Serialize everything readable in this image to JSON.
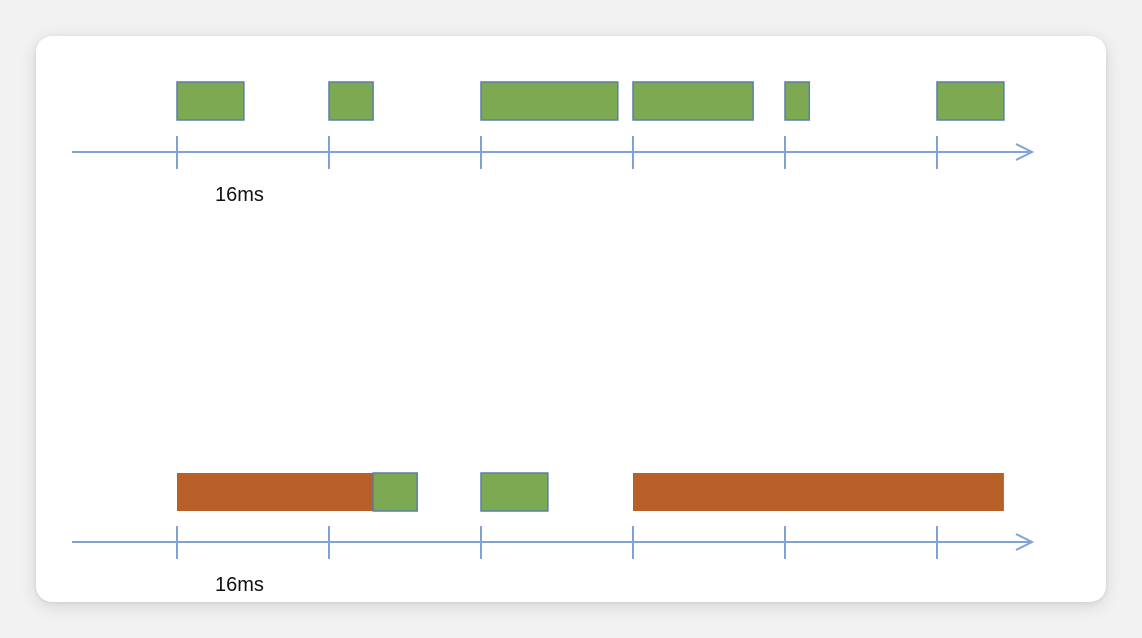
{
  "colors": {
    "axis": "#7fa3d6",
    "frame": "#7ea953",
    "frame_border": "#5a7fa8",
    "jank": "#b95f28"
  },
  "timelines": [
    {
      "label": "16ms",
      "frames": [
        {
          "start": 0.0,
          "end": 0.44,
          "kind": "normal"
        },
        {
          "start": 1.0,
          "end": 1.29,
          "kind": "normal"
        },
        {
          "start": 2.0,
          "end": 2.9,
          "kind": "normal"
        },
        {
          "start": 3.0,
          "end": 3.79,
          "kind": "normal"
        },
        {
          "start": 4.0,
          "end": 4.16,
          "kind": "normal"
        },
        {
          "start": 5.0,
          "end": 5.44,
          "kind": "normal"
        }
      ]
    },
    {
      "label": "16ms",
      "frames": [
        {
          "start": 0.0,
          "end": 1.29,
          "kind": "jank"
        },
        {
          "start": 1.29,
          "end": 1.58,
          "kind": "normal"
        },
        {
          "start": 2.0,
          "end": 2.44,
          "kind": "normal"
        },
        {
          "start": 3.0,
          "end": 5.44,
          "kind": "jank"
        }
      ]
    }
  ]
}
